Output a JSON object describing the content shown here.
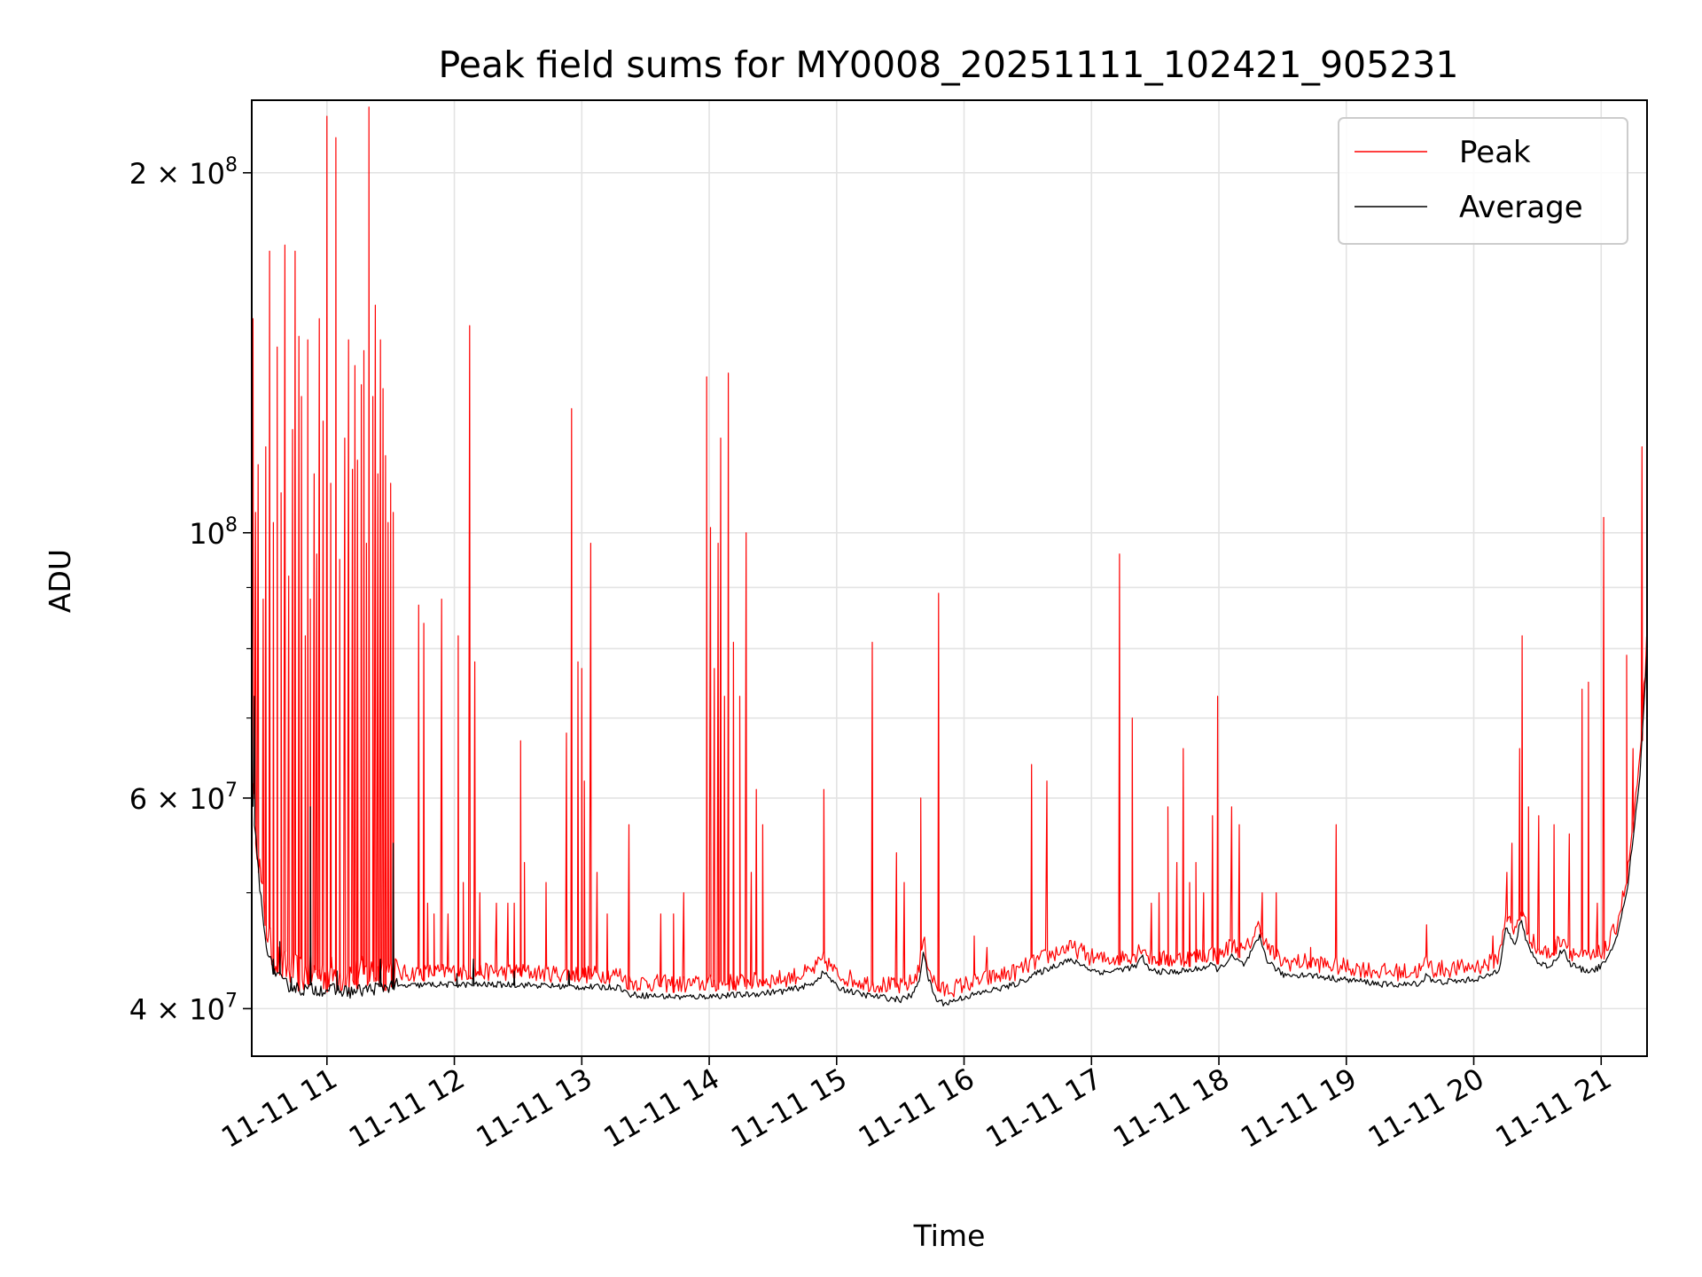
{
  "chart_data": {
    "type": "line",
    "title": "Peak field sums for MY0008_20251111_102421_905231",
    "xlabel": "Time",
    "ylabel": "ADU",
    "yscale": "log",
    "ylim": [
      36500000,
      230000000
    ],
    "xlim": [
      10.41,
      21.36
    ],
    "grid": true,
    "legend_position": "top-right",
    "x_unit": "hour of 2025-11-11",
    "x_ticks": [
      {
        "value": 11,
        "label": "11-11 11"
      },
      {
        "value": 12,
        "label": "11-11 12"
      },
      {
        "value": 13,
        "label": "11-11 13"
      },
      {
        "value": 14,
        "label": "11-11 14"
      },
      {
        "value": 15,
        "label": "11-11 15"
      },
      {
        "value": 16,
        "label": "11-11 16"
      },
      {
        "value": 17,
        "label": "11-11 17"
      },
      {
        "value": 18,
        "label": "11-11 18"
      },
      {
        "value": 19,
        "label": "11-11 19"
      },
      {
        "value": 20,
        "label": "11-11 20"
      },
      {
        "value": 21,
        "label": "11-11 21"
      }
    ],
    "y_ticks": [
      {
        "value": 40000000,
        "mantissa": "4",
        "exponent": "7"
      },
      {
        "value": 60000000,
        "mantissa": "6",
        "exponent": "7"
      },
      {
        "value": 100000000,
        "mantissa": "",
        "exponent": "8"
      },
      {
        "value": 200000000,
        "mantissa": "2",
        "exponent": "8"
      }
    ],
    "y_minor_ticks": [
      50000000,
      70000000,
      80000000,
      90000000
    ],
    "baseline": [
      [
        10.41,
        60000000
      ],
      [
        10.45,
        54000000
      ],
      [
        10.5,
        47000000
      ],
      [
        10.56,
        43500000
      ],
      [
        10.65,
        42000000
      ],
      [
        10.8,
        41500000
      ],
      [
        11.0,
        41500000
      ],
      [
        11.2,
        41300000
      ],
      [
        11.5,
        41800000
      ],
      [
        11.8,
        42000000
      ],
      [
        12.0,
        42000000
      ],
      [
        12.5,
        42000000
      ],
      [
        13.0,
        41800000
      ],
      [
        13.3,
        41800000
      ],
      [
        13.37,
        41200000
      ],
      [
        13.8,
        41000000
      ],
      [
        14.3,
        41200000
      ],
      [
        14.6,
        41500000
      ],
      [
        14.8,
        42000000
      ],
      [
        14.9,
        43000000
      ],
      [
        14.95,
        42500000
      ],
      [
        15.0,
        41800000
      ],
      [
        15.2,
        41200000
      ],
      [
        15.5,
        40800000
      ],
      [
        15.6,
        41200000
      ],
      [
        15.65,
        42500000
      ],
      [
        15.68,
        44800000
      ],
      [
        15.72,
        42500000
      ],
      [
        15.78,
        40800000
      ],
      [
        15.85,
        40500000
      ],
      [
        16.0,
        41000000
      ],
      [
        16.2,
        41500000
      ],
      [
        16.4,
        42000000
      ],
      [
        16.55,
        42800000
      ],
      [
        16.7,
        43500000
      ],
      [
        16.8,
        44000000
      ],
      [
        16.9,
        43800000
      ],
      [
        17.0,
        43200000
      ],
      [
        17.1,
        43000000
      ],
      [
        17.2,
        43200000
      ],
      [
        17.35,
        43500000
      ],
      [
        17.4,
        44300000
      ],
      [
        17.45,
        43200000
      ],
      [
        17.6,
        43000000
      ],
      [
        17.8,
        43200000
      ],
      [
        17.95,
        43600000
      ],
      [
        18.0,
        43200000
      ],
      [
        18.05,
        43800000
      ],
      [
        18.1,
        44300000
      ],
      [
        18.2,
        43600000
      ],
      [
        18.28,
        45200000
      ],
      [
        18.32,
        46000000
      ],
      [
        18.38,
        44000000
      ],
      [
        18.5,
        42800000
      ],
      [
        18.7,
        42800000
      ],
      [
        18.9,
        42500000
      ],
      [
        19.1,
        42300000
      ],
      [
        19.3,
        42000000
      ],
      [
        19.5,
        42000000
      ],
      [
        19.6,
        42200000
      ],
      [
        19.63,
        43000000
      ],
      [
        19.68,
        42200000
      ],
      [
        19.9,
        42300000
      ],
      [
        20.1,
        42600000
      ],
      [
        20.2,
        43300000
      ],
      [
        20.25,
        47000000
      ],
      [
        20.32,
        45200000
      ],
      [
        20.37,
        47500000
      ],
      [
        20.42,
        45500000
      ],
      [
        20.5,
        43800000
      ],
      [
        20.6,
        43500000
      ],
      [
        20.7,
        45000000
      ],
      [
        20.75,
        43800000
      ],
      [
        20.85,
        43200000
      ],
      [
        20.95,
        43200000
      ],
      [
        21.05,
        44000000
      ],
      [
        21.12,
        46000000
      ],
      [
        21.2,
        50000000
      ],
      [
        21.3,
        62000000
      ],
      [
        21.36,
        80000000
      ]
    ],
    "series": [
      {
        "name": "Peak",
        "color": "#ff0000",
        "stroke_width": 1.2,
        "spikes": [
          [
            10.42,
            151000000
          ],
          [
            10.44,
            104000000
          ],
          [
            10.46,
            114000000
          ],
          [
            10.5,
            88000000
          ],
          [
            10.52,
            118000000
          ],
          [
            10.55,
            172000000
          ],
          [
            10.58,
            102000000
          ],
          [
            10.61,
            143000000
          ],
          [
            10.64,
            108000000
          ],
          [
            10.67,
            174000000
          ],
          [
            10.7,
            92000000
          ],
          [
            10.73,
            122000000
          ],
          [
            10.75,
            172000000
          ],
          [
            10.78,
            146000000
          ],
          [
            10.8,
            130000000
          ],
          [
            10.83,
            82000000
          ],
          [
            10.85,
            145000000
          ],
          [
            10.87,
            88000000
          ],
          [
            10.9,
            112000000
          ],
          [
            10.92,
            96000000
          ],
          [
            10.94,
            151000000
          ],
          [
            10.97,
            124000000
          ],
          [
            11.0,
            223000000
          ],
          [
            11.03,
            110000000
          ],
          [
            11.07,
            214000000
          ],
          [
            11.1,
            95000000
          ],
          [
            11.14,
            120000000
          ],
          [
            11.17,
            145000000
          ],
          [
            11.2,
            113000000
          ],
          [
            11.22,
            138000000
          ],
          [
            11.24,
            115000000
          ],
          [
            11.27,
            133000000
          ],
          [
            11.29,
            142000000
          ],
          [
            11.31,
            98000000
          ],
          [
            11.33,
            227000000
          ],
          [
            11.36,
            130000000
          ],
          [
            11.38,
            155000000
          ],
          [
            11.4,
            112000000
          ],
          [
            11.42,
            145000000
          ],
          [
            11.44,
            132000000
          ],
          [
            11.46,
            116000000
          ],
          [
            11.48,
            102000000
          ],
          [
            11.5,
            110000000
          ],
          [
            11.52,
            104000000
          ],
          [
            11.72,
            87000000
          ],
          [
            11.76,
            84000000
          ],
          [
            11.79,
            49000000
          ],
          [
            11.84,
            48000000
          ],
          [
            11.9,
            88000000
          ],
          [
            11.95,
            48000000
          ],
          [
            12.03,
            82000000
          ],
          [
            12.07,
            51000000
          ],
          [
            12.12,
            149000000
          ],
          [
            12.16,
            78000000
          ],
          [
            12.2,
            50000000
          ],
          [
            12.33,
            49000000
          ],
          [
            12.42,
            49000000
          ],
          [
            12.47,
            49000000
          ],
          [
            12.52,
            67000000
          ],
          [
            12.55,
            53000000
          ],
          [
            12.72,
            51000000
          ],
          [
            12.88,
            68000000
          ],
          [
            12.92,
            127000000
          ],
          [
            12.97,
            78000000
          ],
          [
            13.0,
            77000000
          ],
          [
            13.02,
            62000000
          ],
          [
            13.07,
            98000000
          ],
          [
            13.12,
            52000000
          ],
          [
            13.2,
            48000000
          ],
          [
            13.37,
            57000000
          ],
          [
            13.62,
            48000000
          ],
          [
            13.72,
            48000000
          ],
          [
            13.8,
            50000000
          ],
          [
            13.98,
            135000000
          ],
          [
            14.01,
            101000000
          ],
          [
            14.04,
            77000000
          ],
          [
            14.07,
            98000000
          ],
          [
            14.09,
            120000000
          ],
          [
            14.12,
            73000000
          ],
          [
            14.15,
            136000000
          ],
          [
            14.19,
            81000000
          ],
          [
            14.24,
            73000000
          ],
          [
            14.29,
            100000000
          ],
          [
            14.33,
            52000000
          ],
          [
            14.37,
            61000000
          ],
          [
            14.42,
            57000000
          ],
          [
            14.9,
            61000000
          ],
          [
            15.28,
            81000000
          ],
          [
            15.47,
            54000000
          ],
          [
            15.53,
            51000000
          ],
          [
            15.66,
            60000000
          ],
          [
            15.8,
            89000000
          ],
          [
            16.08,
            46000000
          ],
          [
            16.18,
            45000000
          ],
          [
            16.53,
            64000000
          ],
          [
            16.65,
            62000000
          ],
          [
            17.22,
            96000000
          ],
          [
            17.32,
            70000000
          ],
          [
            17.47,
            49000000
          ],
          [
            17.53,
            50000000
          ],
          [
            17.6,
            59000000
          ],
          [
            17.67,
            53000000
          ],
          [
            17.72,
            66000000
          ],
          [
            17.77,
            51000000
          ],
          [
            17.82,
            53000000
          ],
          [
            17.88,
            50000000
          ],
          [
            17.95,
            58000000
          ],
          [
            17.99,
            73000000
          ],
          [
            18.1,
            59000000
          ],
          [
            18.16,
            57000000
          ],
          [
            18.34,
            50000000
          ],
          [
            18.45,
            50000000
          ],
          [
            18.72,
            45000000
          ],
          [
            18.92,
            57000000
          ],
          [
            19.63,
            47000000
          ],
          [
            20.15,
            46000000
          ],
          [
            20.26,
            52000000
          ],
          [
            20.3,
            55000000
          ],
          [
            20.36,
            66000000
          ],
          [
            20.38,
            82000000
          ],
          [
            20.43,
            59000000
          ],
          [
            20.51,
            58000000
          ],
          [
            20.63,
            57000000
          ],
          [
            20.75,
            56000000
          ],
          [
            20.85,
            74000000
          ],
          [
            20.9,
            75000000
          ],
          [
            20.97,
            49000000
          ],
          [
            21.02,
            103000000
          ],
          [
            21.2,
            79000000
          ],
          [
            21.25,
            66000000
          ],
          [
            21.32,
            118000000
          ]
        ]
      },
      {
        "name": "Average",
        "color": "#000000",
        "stroke_width": 1.2,
        "spikes": [
          [
            10.43,
            73000000
          ],
          [
            10.58,
            44000000
          ],
          [
            10.63,
            45500000
          ],
          [
            10.72,
            42500000
          ],
          [
            10.87,
            59000000
          ],
          [
            11.08,
            43000000
          ],
          [
            11.42,
            44000000
          ],
          [
            11.52,
            55000000
          ],
          [
            12.02,
            42800000
          ],
          [
            12.15,
            44000000
          ],
          [
            12.47,
            43000000
          ],
          [
            12.9,
            43000000
          ]
        ]
      }
    ]
  }
}
